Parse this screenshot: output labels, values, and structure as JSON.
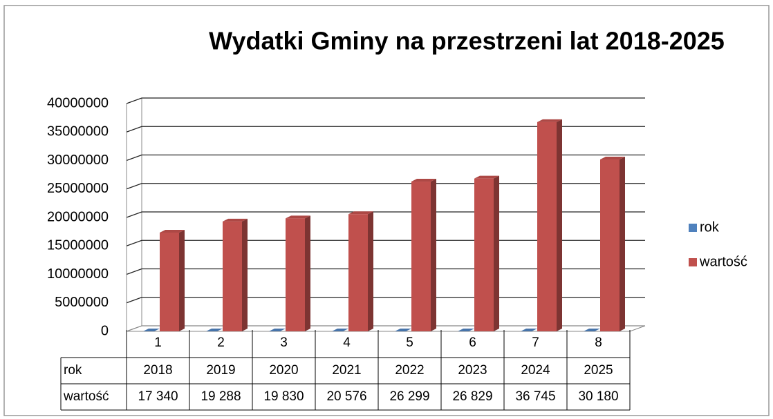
{
  "chart_data": {
    "type": "bar3d",
    "title": "Wydatki Gminy na przestrzeni lat 2018-2025",
    "categories": [
      1,
      2,
      3,
      4,
      5,
      6,
      7,
      8
    ],
    "series": [
      {
        "name": "rok",
        "color": "#4f81bd",
        "values": [
          2018,
          2019,
          2020,
          2021,
          2022,
          2023,
          2024,
          2025
        ]
      },
      {
        "name": "wartość",
        "color": "#c0504d",
        "values": [
          17340000,
          19288000,
          19830000,
          20576000,
          26299000,
          26829000,
          36745000,
          30180000
        ],
        "value_labels": [
          "17 340",
          "19 288",
          "19 830",
          "20 576",
          "26 299",
          "26 829",
          "36 745",
          "30 180"
        ]
      }
    ],
    "ylim": [
      0,
      40000000
    ],
    "yticks": [
      0,
      5000000,
      10000000,
      15000000,
      20000000,
      25000000,
      30000000,
      35000000,
      40000000
    ],
    "grid": true,
    "legend": "right",
    "data_table": true
  }
}
